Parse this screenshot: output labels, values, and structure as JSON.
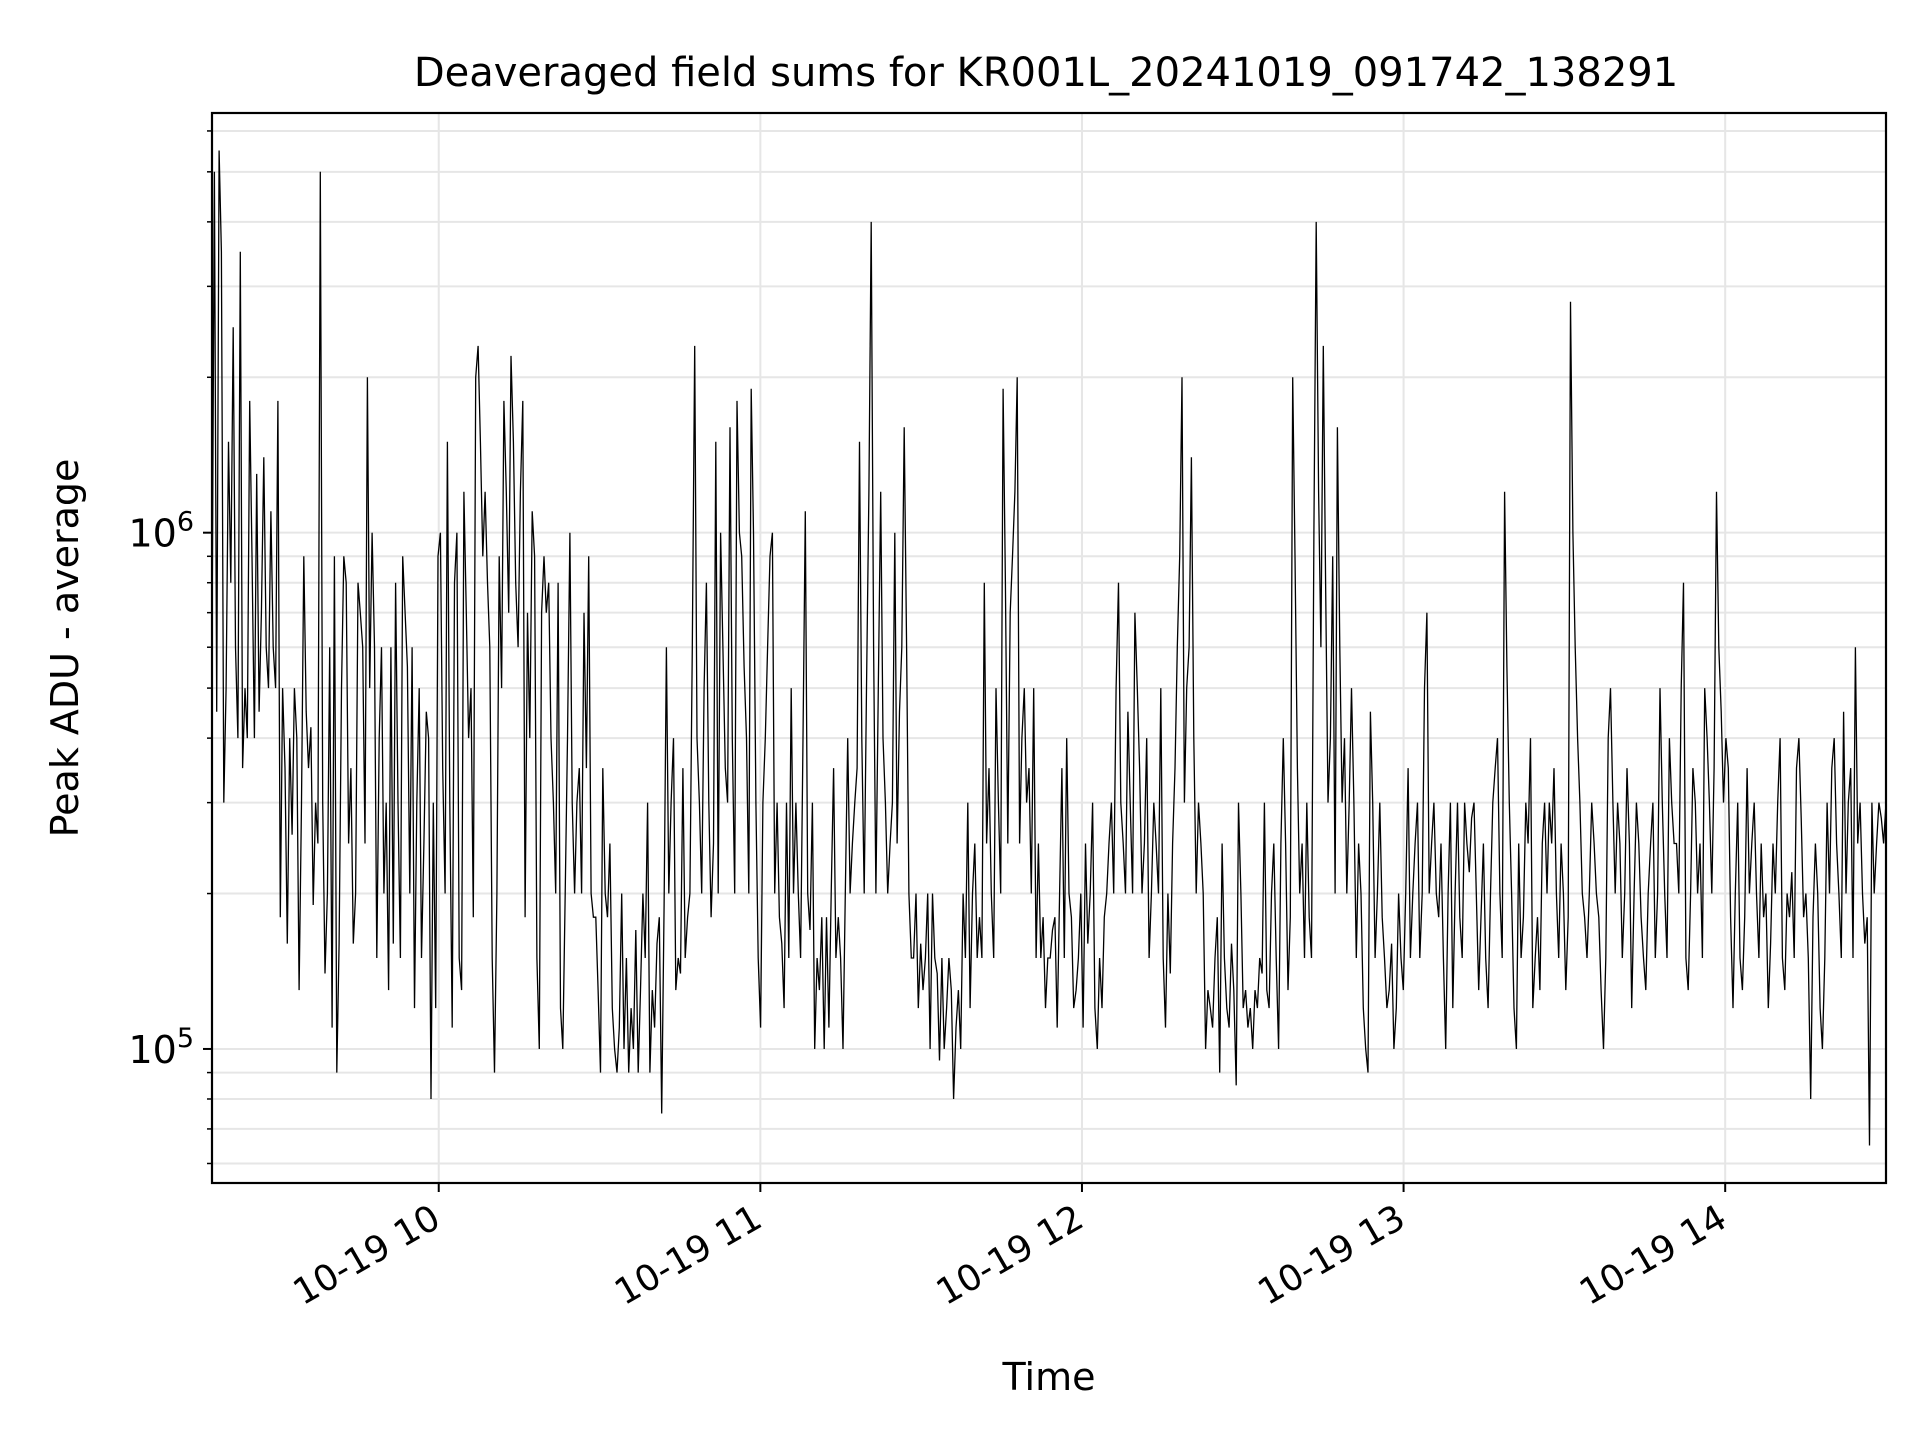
{
  "chart_data": {
    "type": "line",
    "title": "Deaveraged field sums for KR001L_20241019_091742_138291",
    "xlabel": "Time",
    "ylabel": "Peak ADU - average",
    "yscale": "log",
    "grid": true,
    "line_color": "#000000",
    "x_range": [
      "2024-10-19 09:17:42",
      "2024-10-19 14:30:00"
    ],
    "y_range": [
      55000,
      6500000
    ],
    "x_ticks": [
      {
        "label": "10-19 10",
        "value": "2024-10-19 10:00"
      },
      {
        "label": "10-19 11",
        "value": "2024-10-19 11:00"
      },
      {
        "label": "10-19 12",
        "value": "2024-10-19 12:00"
      },
      {
        "label": "10-19 13",
        "value": "2024-10-19 13:00"
      },
      {
        "label": "10-19 14",
        "value": "2024-10-19 14:00"
      }
    ],
    "y_ticks": [
      {
        "base": "10",
        "exp": "5",
        "value": 100000
      },
      {
        "base": "10",
        "exp": "6",
        "value": 1000000
      }
    ],
    "series": [
      {
        "x_start": "2024-10-19 09:17:42",
        "x_end": "2024-10-19 14:30:00",
        "values": [
          600000,
          5000000,
          450000,
          5500000,
          3500000,
          300000,
          500000,
          1500000,
          800000,
          2500000,
          600000,
          400000,
          3500000,
          350000,
          500000,
          400000,
          1800000,
          900000,
          400000,
          1300000,
          450000,
          700000,
          1400000,
          600000,
          500000,
          1100000,
          600000,
          500000,
          1800000,
          180000,
          500000,
          350000,
          160000,
          400000,
          260000,
          500000,
          400000,
          130000,
          300000,
          900000,
          450000,
          350000,
          420000,
          190000,
          300000,
          250000,
          5000000,
          300000,
          140000,
          200000,
          600000,
          110000,
          900000,
          90000,
          160000,
          500000,
          900000,
          800000,
          250000,
          350000,
          160000,
          200000,
          800000,
          700000,
          600000,
          250000,
          2000000,
          500000,
          1000000,
          600000,
          150000,
          400000,
          600000,
          200000,
          300000,
          130000,
          600000,
          160000,
          800000,
          300000,
          150000,
          900000,
          700000,
          550000,
          200000,
          600000,
          120000,
          300000,
          500000,
          150000,
          250000,
          450000,
          400000,
          80000,
          300000,
          120000,
          900000,
          1000000,
          350000,
          200000,
          1500000,
          300000,
          110000,
          800000,
          1000000,
          150000,
          130000,
          1200000,
          700000,
          400000,
          500000,
          180000,
          2000000,
          2300000,
          1500000,
          900000,
          1200000,
          800000,
          600000,
          150000,
          90000,
          200000,
          900000,
          500000,
          1800000,
          1200000,
          700000,
          2200000,
          1500000,
          800000,
          600000,
          1200000,
          1800000,
          180000,
          700000,
          400000,
          1100000,
          900000,
          150000,
          100000,
          700000,
          900000,
          700000,
          800000,
          400000,
          300000,
          200000,
          800000,
          120000,
          100000,
          200000,
          400000,
          1000000,
          300000,
          200000,
          300000,
          350000,
          200000,
          700000,
          350000,
          900000,
          200000,
          180000,
          180000,
          130000,
          90000,
          350000,
          200000,
          180000,
          250000,
          120000,
          100000,
          90000,
          110000,
          200000,
          100000,
          150000,
          90000,
          120000,
          100000,
          170000,
          90000,
          130000,
          200000,
          150000,
          300000,
          90000,
          130000,
          110000,
          160000,
          180000,
          75000,
          190000,
          600000,
          200000,
          300000,
          400000,
          130000,
          150000,
          140000,
          350000,
          150000,
          180000,
          200000,
          600000,
          2300000,
          400000,
          300000,
          200000,
          500000,
          800000,
          300000,
          180000,
          250000,
          1500000,
          200000,
          1000000,
          600000,
          350000,
          300000,
          1600000,
          400000,
          200000,
          1800000,
          1000000,
          900000,
          550000,
          400000,
          200000,
          1900000,
          1000000,
          300000,
          150000,
          110000,
          300000,
          400000,
          600000,
          900000,
          1000000,
          200000,
          300000,
          180000,
          160000,
          120000,
          300000,
          150000,
          500000,
          200000,
          300000,
          200000,
          150000,
          400000,
          1100000,
          200000,
          170000,
          300000,
          100000,
          150000,
          130000,
          180000,
          100000,
          180000,
          110000,
          200000,
          350000,
          150000,
          180000,
          150000,
          100000,
          200000,
          400000,
          200000,
          250000,
          300000,
          350000,
          1500000,
          400000,
          200000,
          500000,
          1200000,
          4000000,
          600000,
          200000,
          500000,
          1200000,
          400000,
          300000,
          200000,
          250000,
          300000,
          1000000,
          250000,
          450000,
          600000,
          1600000,
          600000,
          200000,
          150000,
          150000,
          200000,
          120000,
          160000,
          130000,
          150000,
          200000,
          100000,
          200000,
          150000,
          140000,
          95000,
          150000,
          100000,
          120000,
          150000,
          130000,
          80000,
          110000,
          130000,
          100000,
          200000,
          150000,
          300000,
          120000,
          200000,
          250000,
          150000,
          180000,
          150000,
          800000,
          250000,
          350000,
          200000,
          150000,
          500000,
          300000,
          200000,
          1900000,
          800000,
          250000,
          700000,
          900000,
          1200000,
          2000000,
          250000,
          400000,
          500000,
          300000,
          350000,
          200000,
          500000,
          150000,
          250000,
          150000,
          180000,
          120000,
          150000,
          150000,
          170000,
          180000,
          110000,
          200000,
          350000,
          150000,
          400000,
          200000,
          180000,
          120000,
          130000,
          150000,
          200000,
          110000,
          250000,
          160000,
          200000,
          300000,
          120000,
          100000,
          150000,
          120000,
          180000,
          200000,
          250000,
          300000,
          200000,
          500000,
          800000,
          300000,
          250000,
          200000,
          450000,
          300000,
          200000,
          700000,
          500000,
          350000,
          200000,
          250000,
          400000,
          150000,
          200000,
          300000,
          250000,
          200000,
          500000,
          150000,
          110000,
          200000,
          140000,
          250000,
          350000,
          600000,
          900000,
          2000000,
          300000,
          500000,
          600000,
          1400000,
          400000,
          200000,
          300000,
          250000,
          200000,
          100000,
          130000,
          120000,
          110000,
          150000,
          180000,
          90000,
          250000,
          150000,
          120000,
          110000,
          160000,
          130000,
          85000,
          300000,
          200000,
          120000,
          130000,
          110000,
          120000,
          100000,
          130000,
          120000,
          150000,
          140000,
          300000,
          130000,
          120000,
          200000,
          250000,
          150000,
          100000,
          250000,
          400000,
          250000,
          130000,
          180000,
          2000000,
          900000,
          350000,
          200000,
          250000,
          150000,
          300000,
          180000,
          150000,
          1000000,
          4000000,
          1200000,
          600000,
          2300000,
          800000,
          300000,
          400000,
          900000,
          200000,
          1600000,
          600000,
          300000,
          400000,
          200000,
          300000,
          500000,
          300000,
          150000,
          250000,
          200000,
          120000,
          100000,
          90000,
          450000,
          300000,
          150000,
          200000,
          300000,
          180000,
          150000,
          120000,
          130000,
          160000,
          100000,
          120000,
          200000,
          150000,
          130000,
          200000,
          350000,
          150000,
          200000,
          250000,
          300000,
          150000,
          200000,
          500000,
          700000,
          200000,
          250000,
          300000,
          200000,
          180000,
          250000,
          150000,
          100000,
          200000,
          300000,
          120000,
          200000,
          300000,
          180000,
          150000,
          300000,
          250000,
          220000,
          280000,
          300000,
          200000,
          130000,
          180000,
          250000,
          150000,
          120000,
          200000,
          300000,
          350000,
          400000,
          200000,
          150000,
          1200000,
          550000,
          300000,
          200000,
          120000,
          100000,
          250000,
          150000,
          180000,
          300000,
          250000,
          400000,
          120000,
          150000,
          180000,
          130000,
          250000,
          300000,
          200000,
          300000,
          250000,
          350000,
          200000,
          150000,
          250000,
          200000,
          130000,
          180000,
          2800000,
          1000000,
          600000,
          400000,
          300000,
          200000,
          180000,
          150000,
          200000,
          300000,
          250000,
          200000,
          180000,
          130000,
          100000,
          150000,
          400000,
          500000,
          300000,
          200000,
          300000,
          250000,
          150000,
          200000,
          350000,
          250000,
          120000,
          200000,
          300000,
          250000,
          180000,
          150000,
          130000,
          200000,
          250000,
          300000,
          150000,
          200000,
          500000,
          300000,
          200000,
          150000,
          400000,
          300000,
          250000,
          250000,
          200000,
          500000,
          800000,
          150000,
          130000,
          200000,
          350000,
          300000,
          200000,
          250000,
          150000,
          500000,
          400000,
          300000,
          200000,
          350000,
          1200000,
          600000,
          450000,
          300000,
          400000,
          350000,
          180000,
          120000,
          200000,
          300000,
          150000,
          130000,
          180000,
          350000,
          200000,
          250000,
          300000,
          200000,
          150000,
          250000,
          180000,
          200000,
          120000,
          160000,
          250000,
          200000,
          300000,
          400000,
          150000,
          130000,
          200000,
          180000,
          220000,
          150000,
          350000,
          400000,
          280000,
          180000,
          200000,
          150000,
          80000,
          180000,
          250000,
          200000,
          120000,
          100000,
          150000,
          300000,
          200000,
          350000,
          400000,
          250000,
          200000,
          150000,
          450000,
          200000,
          300000,
          350000,
          150000,
          600000,
          250000,
          300000,
          200000,
          160000,
          180000,
          65000,
          300000,
          200000,
          250000,
          300000,
          280000,
          250000,
          300000
        ]
      }
    ]
  }
}
